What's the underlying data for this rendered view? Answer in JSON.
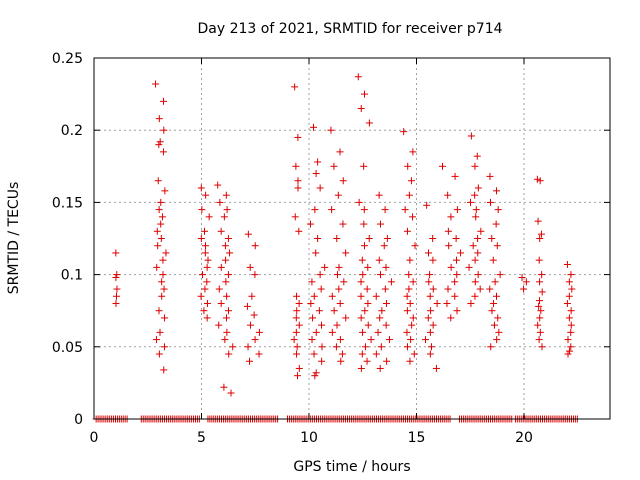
{
  "chart_data": {
    "type": "scatter",
    "title": "Day 213 of 2021, SRMTID for receiver p714",
    "xlabel": "GPS time / hours",
    "ylabel": "SRMTID / TECUs",
    "xlim": [
      0,
      24
    ],
    "ylim": [
      0,
      0.25
    ],
    "x_ticks": [
      0,
      5,
      10,
      15,
      20
    ],
    "x_tick_labels": [
      "0",
      "5",
      "10",
      "15",
      "20"
    ],
    "y_ticks": [
      0,
      0.05,
      0.1,
      0.15,
      0.2,
      0.25
    ],
    "y_tick_labels": [
      "0",
      "0.05",
      "0.1",
      "0.15",
      "0.2",
      "0.25"
    ],
    "grid": true,
    "marker": "plus",
    "series_color": "#dd0000",
    "point_clusters": [
      {
        "x_start": 1.0,
        "x_end": 1.1,
        "y_values": [
          0.115,
          0.1,
          0.098,
          0.09,
          0.085,
          0.08
        ]
      },
      {
        "x_start": 2.85,
        "x_end": 3.4,
        "y_values": [
          0.232,
          0.22,
          0.208,
          0.2,
          0.192,
          0.19,
          0.185,
          0.165,
          0.158,
          0.15,
          0.145,
          0.14,
          0.135,
          0.13,
          0.125,
          0.12,
          0.115,
          0.11,
          0.105,
          0.1,
          0.095,
          0.09,
          0.085,
          0.075,
          0.07,
          0.06,
          0.055,
          0.05,
          0.045,
          0.034
        ]
      },
      {
        "x_start": 4.9,
        "x_end": 5.45,
        "y_values": [
          0.16,
          0.155,
          0.145,
          0.14,
          0.13,
          0.125,
          0.12,
          0.115,
          0.11,
          0.105,
          0.1,
          0.095,
          0.09,
          0.085,
          0.08,
          0.075,
          0.07
        ]
      },
      {
        "x_start": 5.7,
        "x_end": 6.5,
        "y_values": [
          0.162,
          0.155,
          0.15,
          0.145,
          0.14,
          0.13,
          0.125,
          0.12,
          0.115,
          0.11,
          0.105,
          0.1,
          0.095,
          0.09,
          0.085,
          0.08,
          0.075,
          0.07,
          0.065,
          0.06,
          0.055,
          0.05,
          0.045,
          0.022,
          0.018
        ]
      },
      {
        "x_start": 7.0,
        "x_end": 7.8,
        "y_values": [
          0.128,
          0.12,
          0.105,
          0.1,
          0.085,
          0.078,
          0.072,
          0.065,
          0.06,
          0.055,
          0.05,
          0.045,
          0.04
        ]
      },
      {
        "x_start": 9.3,
        "x_end": 9.6,
        "y_values": [
          0.23,
          0.195,
          0.175,
          0.165,
          0.16,
          0.14,
          0.13,
          0.085,
          0.08,
          0.075,
          0.07,
          0.065,
          0.06,
          0.055,
          0.05,
          0.045,
          0.035,
          0.03
        ]
      },
      {
        "x_start": 10.0,
        "x_end": 10.8,
        "y_values": [
          0.202,
          0.178,
          0.17,
          0.16,
          0.145,
          0.135,
          0.125,
          0.115,
          0.105,
          0.1,
          0.095,
          0.09,
          0.085,
          0.08,
          0.075,
          0.07,
          0.065,
          0.06,
          0.055,
          0.05,
          0.045,
          0.04,
          0.032,
          0.03
        ]
      },
      {
        "x_start": 11.0,
        "x_end": 11.8,
        "y_values": [
          0.2,
          0.185,
          0.175,
          0.165,
          0.155,
          0.145,
          0.135,
          0.125,
          0.115,
          0.105,
          0.1,
          0.095,
          0.09,
          0.085,
          0.08,
          0.075,
          0.07,
          0.065,
          0.06,
          0.055,
          0.05,
          0.045,
          0.04
        ]
      },
      {
        "x_start": 12.2,
        "x_end": 12.9,
        "y_values": [
          0.237,
          0.225,
          0.215,
          0.205,
          0.175,
          0.15,
          0.145,
          0.135,
          0.125,
          0.12,
          0.11,
          0.105,
          0.1,
          0.095,
          0.09,
          0.085,
          0.08,
          0.075,
          0.07,
          0.065,
          0.06,
          0.055,
          0.05,
          0.045,
          0.04,
          0.035
        ]
      },
      {
        "x_start": 13.0,
        "x_end": 13.9,
        "y_values": [
          0.155,
          0.145,
          0.135,
          0.125,
          0.12,
          0.11,
          0.105,
          0.1,
          0.095,
          0.09,
          0.085,
          0.08,
          0.075,
          0.07,
          0.065,
          0.06,
          0.055,
          0.05,
          0.045,
          0.04,
          0.035
        ]
      },
      {
        "x_start": 14.4,
        "x_end": 15.0,
        "y_values": [
          0.199,
          0.185,
          0.175,
          0.165,
          0.155,
          0.145,
          0.14,
          0.13,
          0.12,
          0.11,
          0.1,
          0.095,
          0.09,
          0.085,
          0.08,
          0.075,
          0.07,
          0.065,
          0.06,
          0.055,
          0.05,
          0.045,
          0.04
        ]
      },
      {
        "x_start": 15.4,
        "x_end": 16.0,
        "y_values": [
          0.148,
          0.125,
          0.115,
          0.11,
          0.1,
          0.095,
          0.09,
          0.085,
          0.08,
          0.075,
          0.07,
          0.065,
          0.06,
          0.055,
          0.05,
          0.045,
          0.035
        ]
      },
      {
        "x_start": 16.2,
        "x_end": 17.2,
        "y_values": [
          0.175,
          0.168,
          0.155,
          0.145,
          0.14,
          0.13,
          0.125,
          0.12,
          0.115,
          0.11,
          0.105,
          0.1,
          0.095,
          0.09,
          0.085,
          0.08,
          0.075,
          0.07
        ]
      },
      {
        "x_start": 17.4,
        "x_end": 18.1,
        "y_values": [
          0.196,
          0.182,
          0.175,
          0.16,
          0.155,
          0.15,
          0.145,
          0.14,
          0.13,
          0.125,
          0.12,
          0.115,
          0.11,
          0.105,
          0.1,
          0.095,
          0.09,
          0.085,
          0.08
        ]
      },
      {
        "x_start": 18.3,
        "x_end": 19.0,
        "y_values": [
          0.168,
          0.158,
          0.15,
          0.145,
          0.135,
          0.125,
          0.12,
          0.11,
          0.1,
          0.095,
          0.09,
          0.085,
          0.08,
          0.075,
          0.07,
          0.065,
          0.06,
          0.055,
          0.05
        ]
      },
      {
        "x_start": 19.9,
        "x_end": 20.2,
        "y_values": [
          0.098,
          0.095,
          0.09
        ]
      },
      {
        "x_start": 20.6,
        "x_end": 20.9,
        "y_values": [
          0.166,
          0.165,
          0.137,
          0.128,
          0.125,
          0.11,
          0.1,
          0.095,
          0.088,
          0.082,
          0.078,
          0.075,
          0.07,
          0.065,
          0.06,
          0.055,
          0.05
        ]
      },
      {
        "x_start": 22.0,
        "x_end": 22.3,
        "y_values": [
          0.107,
          0.1,
          0.095,
          0.09,
          0.085,
          0.08,
          0.075,
          0.07,
          0.065,
          0.06,
          0.055,
          0.05,
          0.047,
          0.045
        ]
      }
    ],
    "zero_line_segments": [
      [
        0.1,
        1.6
      ],
      [
        2.2,
        4.9
      ],
      [
        5.3,
        8.6
      ],
      [
        9.0,
        16.6
      ],
      [
        17.0,
        19.5
      ],
      [
        19.6,
        22.5
      ]
    ]
  }
}
